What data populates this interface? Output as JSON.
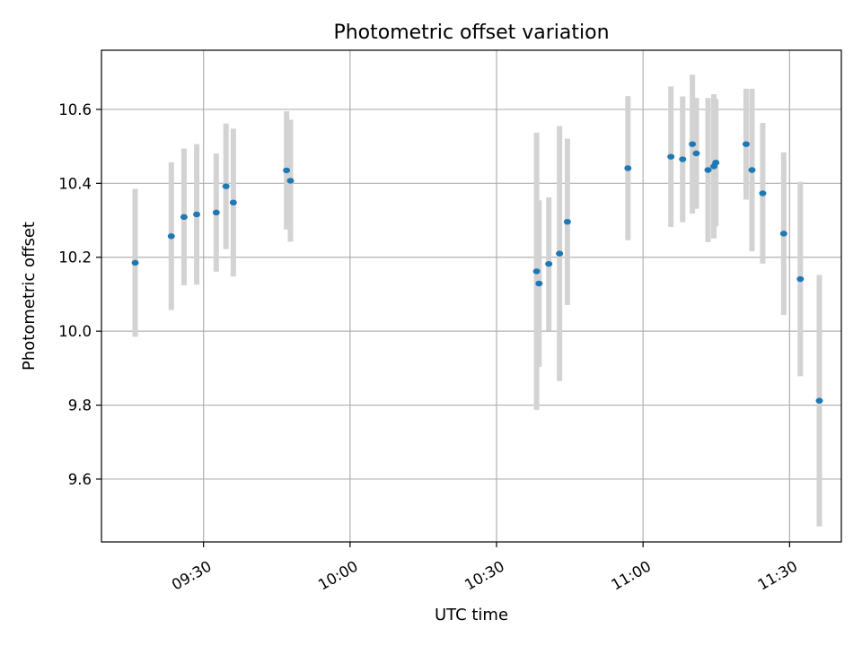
{
  "chart_data": {
    "type": "scatter",
    "title": "Photometric offset variation",
    "xlabel": "UTC time",
    "ylabel": "Photometric offset",
    "x_tick_labels": [
      "09:30",
      "10:00",
      "10:30",
      "11:00",
      "11:30"
    ],
    "x_ticks_min": [
      570,
      600,
      630,
      660,
      690
    ],
    "xlim_min": [
      549.1,
      700.6
    ],
    "y_ticks": [
      9.6,
      9.8,
      10.0,
      10.2,
      10.4,
      10.6
    ],
    "y_tick_labels": [
      "9.6",
      "9.8",
      "10.0",
      "10.2",
      "10.4",
      "10.6"
    ],
    "ylim": [
      9.43,
      10.76
    ],
    "grid": true,
    "colors": {
      "point": "#1f77b4",
      "errorbar": "#d3d3d3",
      "grid": "#b0b0b0"
    },
    "points_time_min": [
      556.0,
      563.4,
      566.0,
      568.6,
      572.6,
      574.6,
      576.1,
      587.0,
      587.8,
      638.2,
      638.7,
      640.7,
      642.9,
      644.5,
      656.9,
      665.7,
      668.1,
      670.1,
      670.9,
      673.3,
      674.5,
      674.9,
      681.1,
      682.3,
      684.5,
      688.8,
      692.2,
      696.1
    ],
    "points_offset": [
      10.185,
      10.257,
      10.309,
      10.316,
      10.321,
      10.392,
      10.348,
      10.435,
      10.407,
      10.162,
      10.129,
      10.182,
      10.21,
      10.296,
      10.441,
      10.472,
      10.465,
      10.506,
      10.481,
      10.436,
      10.446,
      10.456,
      10.506,
      10.436,
      10.373,
      10.264,
      10.141,
      9.812
    ],
    "points_err": [
      0.2,
      0.2,
      0.185,
      0.19,
      0.16,
      0.17,
      0.2,
      0.16,
      0.165,
      0.375,
      0.225,
      0.18,
      0.345,
      0.225,
      0.195,
      0.19,
      0.17,
      0.188,
      0.15,
      0.195,
      0.195,
      0.172,
      0.15,
      0.22,
      0.19,
      0.22,
      0.263,
      0.34
    ]
  }
}
